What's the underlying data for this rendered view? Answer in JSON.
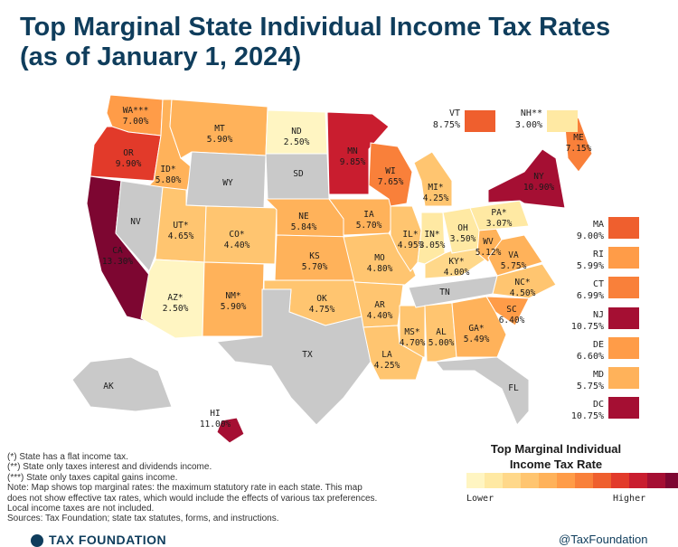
{
  "title_line1": "Top Marginal State Individual Income Tax Rates",
  "title_line2": "(as of January 1, 2024)",
  "colors": {
    "no_tax": "#c9c9c9",
    "scale": [
      "#fff5c2",
      "#ffe9a3",
      "#ffd88a",
      "#ffc570",
      "#ffb25a",
      "#ff9c48",
      "#f9803a",
      "#ef5f2e",
      "#e23a2a",
      "#c91d2f",
      "#a50f33",
      "#7d0631"
    ]
  },
  "states": [
    {
      "code": "WA",
      "rate": "7.00%",
      "color": "#ff9c48",
      "mark": "***"
    },
    {
      "code": "OR",
      "rate": "9.90%",
      "color": "#e23a2a",
      "mark": ""
    },
    {
      "code": "CA",
      "rate": "13.30%",
      "color": "#7d0631",
      "mark": ""
    },
    {
      "code": "ID",
      "rate": "5.80%",
      "color": "#ffb25a",
      "mark": "*"
    },
    {
      "code": "NV",
      "rate": "",
      "color": "#c9c9c9",
      "mark": ""
    },
    {
      "code": "MT",
      "rate": "5.90%",
      "color": "#ffb25a",
      "mark": ""
    },
    {
      "code": "WY",
      "rate": "",
      "color": "#c9c9c9",
      "mark": ""
    },
    {
      "code": "UT",
      "rate": "4.65%",
      "color": "#ffc570",
      "mark": "*"
    },
    {
      "code": "AZ",
      "rate": "2.50%",
      "color": "#fff5c2",
      "mark": "*"
    },
    {
      "code": "CO",
      "rate": "4.40%",
      "color": "#ffc570",
      "mark": "*"
    },
    {
      "code": "NM",
      "rate": "5.90%",
      "color": "#ffb25a",
      "mark": "*"
    },
    {
      "code": "ND",
      "rate": "2.50%",
      "color": "#fff5c2",
      "mark": ""
    },
    {
      "code": "SD",
      "rate": "",
      "color": "#c9c9c9",
      "mark": ""
    },
    {
      "code": "NE",
      "rate": "5.84%",
      "color": "#ffb25a",
      "mark": ""
    },
    {
      "code": "KS",
      "rate": "5.70%",
      "color": "#ffb25a",
      "mark": ""
    },
    {
      "code": "OK",
      "rate": "4.75%",
      "color": "#ffc570",
      "mark": ""
    },
    {
      "code": "TX",
      "rate": "",
      "color": "#c9c9c9",
      "mark": ""
    },
    {
      "code": "MN",
      "rate": "9.85%",
      "color": "#c91d2f",
      "mark": ""
    },
    {
      "code": "IA",
      "rate": "5.70%",
      "color": "#ffb25a",
      "mark": ""
    },
    {
      "code": "MO",
      "rate": "4.80%",
      "color": "#ffc570",
      "mark": ""
    },
    {
      "code": "AR",
      "rate": "4.40%",
      "color": "#ffc570",
      "mark": ""
    },
    {
      "code": "LA",
      "rate": "4.25%",
      "color": "#ffc570",
      "mark": ""
    },
    {
      "code": "WI",
      "rate": "7.65%",
      "color": "#f9803a",
      "mark": ""
    },
    {
      "code": "IL",
      "rate": "4.95%",
      "color": "#ffc570",
      "mark": "*"
    },
    {
      "code": "MS",
      "rate": "4.70%",
      "color": "#ffc570",
      "mark": "*"
    },
    {
      "code": "MI",
      "rate": "4.25%",
      "color": "#ffc570",
      "mark": "*"
    },
    {
      "code": "IN",
      "rate": "3.05%",
      "color": "#ffe9a3",
      "mark": "*"
    },
    {
      "code": "KY",
      "rate": "4.00%",
      "color": "#ffd88a",
      "mark": "*"
    },
    {
      "code": "TN",
      "rate": "",
      "color": "#c9c9c9",
      "mark": ""
    },
    {
      "code": "AL",
      "rate": "5.00%",
      "color": "#ffc570",
      "mark": ""
    },
    {
      "code": "OH",
      "rate": "3.50%",
      "color": "#ffe9a3",
      "mark": ""
    },
    {
      "code": "WV",
      "rate": "5.12%",
      "color": "#ffb25a",
      "mark": ""
    },
    {
      "code": "VA",
      "rate": "5.75%",
      "color": "#ffb25a",
      "mark": ""
    },
    {
      "code": "NC",
      "rate": "4.50%",
      "color": "#ffc570",
      "mark": "*"
    },
    {
      "code": "SC",
      "rate": "6.40%",
      "color": "#ff9c48",
      "mark": ""
    },
    {
      "code": "GA",
      "rate": "5.49%",
      "color": "#ffb25a",
      "mark": "*"
    },
    {
      "code": "FL",
      "rate": "",
      "color": "#c9c9c9",
      "mark": ""
    },
    {
      "code": "PA",
      "rate": "3.07%",
      "color": "#ffe9a3",
      "mark": "*"
    },
    {
      "code": "NY",
      "rate": "10.90%",
      "color": "#a50f33",
      "mark": ""
    },
    {
      "code": "ME",
      "rate": "7.15%",
      "color": "#f9803a",
      "mark": ""
    },
    {
      "code": "AK",
      "rate": "",
      "color": "#c9c9c9",
      "mark": ""
    },
    {
      "code": "HI",
      "rate": "11.00%",
      "color": "#a50f33",
      "mark": ""
    }
  ],
  "insets": [
    {
      "code": "VT",
      "rate": "8.75%",
      "color": "#ef5f2e",
      "mark": ""
    },
    {
      "code": "NH",
      "rate": "3.00%",
      "color": "#ffe9a3",
      "mark": "**"
    },
    {
      "code": "MA",
      "rate": "9.00%",
      "color": "#ef5f2e",
      "mark": ""
    },
    {
      "code": "RI",
      "rate": "5.99%",
      "color": "#ff9c48",
      "mark": ""
    },
    {
      "code": "CT",
      "rate": "6.99%",
      "color": "#f9803a",
      "mark": ""
    },
    {
      "code": "NJ",
      "rate": "10.75%",
      "color": "#a50f33",
      "mark": ""
    },
    {
      "code": "DE",
      "rate": "6.60%",
      "color": "#ff9c48",
      "mark": ""
    },
    {
      "code": "MD",
      "rate": "5.75%",
      "color": "#ffb25a",
      "mark": ""
    },
    {
      "code": "DC",
      "rate": "10.75%",
      "color": "#a50f33",
      "mark": ""
    }
  ],
  "legend": {
    "title_line1": "Top Marginal Individual",
    "title_line2": "Income Tax Rate",
    "lower": "Lower",
    "higher": "Higher"
  },
  "notes": [
    "(*) State has a flat income tax.",
    "(**) State only taxes interest and dividends income.",
    "(***) State only taxes capital gains income.",
    "Note: Map shows top marginal rates: the maximum statutory rate in each state. This map",
    "does not show effective tax rates, which would include the effects of various tax preferences.",
    "Local income taxes are not included.",
    "Sources: Tax Foundation; state tax statutes, forms, and instructions."
  ],
  "footer": {
    "brand": "TAX FOUNDATION",
    "handle": "@TaxFoundation"
  }
}
